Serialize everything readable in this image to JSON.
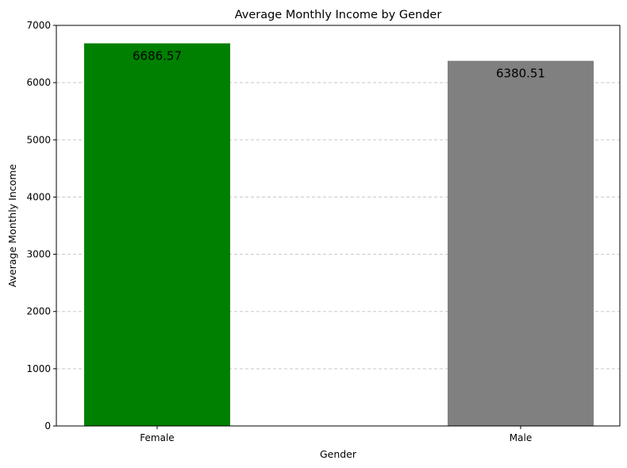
{
  "chart_data": {
    "type": "bar",
    "title": "Average Monthly Income by Gender",
    "xlabel": "Gender",
    "ylabel": "Average Monthly Income",
    "categories": [
      "Female",
      "Male"
    ],
    "values": [
      6686.57,
      6380.51
    ],
    "data_labels": [
      "6686.57",
      "6380.51"
    ],
    "colors": [
      "#008000",
      "#808080"
    ],
    "ylim": [
      0,
      7000
    ],
    "yticks": [
      0,
      1000,
      2000,
      3000,
      4000,
      5000,
      6000,
      7000
    ],
    "ytick_labels": [
      "0",
      "1000",
      "2000",
      "3000",
      "4000",
      "5000",
      "6000",
      "7000"
    ],
    "grid": "y-dashed"
  }
}
